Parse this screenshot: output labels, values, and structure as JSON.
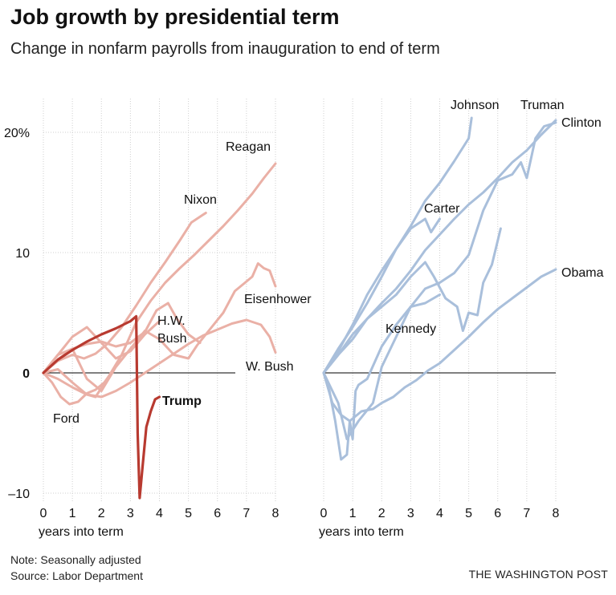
{
  "title": "Job growth by presidential term",
  "subtitle": "Change in nonfarm payrolls from inauguration to end of term",
  "note": "Note: Seasonally adjusted",
  "source": "Source: Labor Department",
  "credit": "THE WASHINGTON POST",
  "colors": {
    "red_light": "#eab0a6",
    "red_dark": "#b83a30",
    "blue": "#a9bfdb",
    "axis": "#000000",
    "grid": "#cfcfcf"
  },
  "chart_data": [
    {
      "type": "line",
      "xlabel": "years into term",
      "xlim": [
        0,
        8
      ],
      "ylim": [
        -10,
        20
      ],
      "x_ticks": [
        "0",
        "1",
        "2",
        "3",
        "4",
        "5",
        "6",
        "7",
        "8"
      ],
      "y_ticks": [
        {
          "value": 20,
          "label": "20%"
        },
        {
          "value": 10,
          "label": "10"
        },
        {
          "value": 0,
          "label": "0"
        },
        {
          "value": -10,
          "label": "–10"
        }
      ],
      "grid": true,
      "series": [
        {
          "name": "Reagan",
          "color": "#eab0a6",
          "points": [
            [
              0,
              0
            ],
            [
              0.5,
              0.3
            ],
            [
              1,
              -0.8
            ],
            [
              1.5,
              -1.8
            ],
            [
              1.8,
              -2.0
            ],
            [
              2.2,
              -0.5
            ],
            [
              2.7,
              1.5
            ],
            [
              3.2,
              4.2
            ],
            [
              3.7,
              6.0
            ],
            [
              4.2,
              7.5
            ],
            [
              4.7,
              8.7
            ],
            [
              5.2,
              9.8
            ],
            [
              5.7,
              11.0
            ],
            [
              6.2,
              12.2
            ],
            [
              6.7,
              13.5
            ],
            [
              7.2,
              14.9
            ],
            [
              7.6,
              16.2
            ],
            [
              8,
              17.4
            ]
          ]
        },
        {
          "name": "Nixon",
          "color": "#eab0a6",
          "points": [
            [
              0,
              0
            ],
            [
              0.5,
              1.0
            ],
            [
              1,
              1.5
            ],
            [
              1.4,
              1.2
            ],
            [
              1.8,
              1.6
            ],
            [
              2.2,
              2.4
            ],
            [
              2.7,
              3.8
            ],
            [
              3.2,
              5.6
            ],
            [
              3.7,
              7.5
            ],
            [
              4.2,
              9.2
            ],
            [
              4.7,
              11.0
            ],
            [
              5.1,
              12.5
            ],
            [
              5.6,
              13.3
            ]
          ]
        },
        {
          "name": "Eisenhower",
          "color": "#eab0a6",
          "points": [
            [
              0,
              0
            ],
            [
              0.5,
              1.5
            ],
            [
              1,
              2.0
            ],
            [
              1.5,
              -0.5
            ],
            [
              2,
              -1.5
            ],
            [
              2.5,
              0.5
            ],
            [
              3,
              2.0
            ],
            [
              3.5,
              3.5
            ],
            [
              4,
              2.8
            ],
            [
              4.5,
              1.5
            ],
            [
              5,
              1.2
            ],
            [
              5.3,
              2.3
            ],
            [
              5.7,
              3.5
            ],
            [
              6.2,
              5.0
            ],
            [
              6.6,
              6.8
            ],
            [
              6.9,
              7.4
            ],
            [
              7.2,
              8.0
            ],
            [
              7.4,
              9.1
            ],
            [
              7.6,
              8.7
            ],
            [
              7.8,
              8.5
            ],
            [
              8,
              7.2
            ]
          ]
        },
        {
          "name": "H.W. Bush",
          "color": "#eab0a6",
          "points": [
            [
              0,
              0
            ],
            [
              0.5,
              1.1
            ],
            [
              1,
              2.0
            ],
            [
              1.5,
              2.4
            ],
            [
              2,
              2.6
            ],
            [
              2.5,
              2.2
            ],
            [
              3,
              2.5
            ],
            [
              3.5,
              3.4
            ],
            [
              3.9,
              5.2
            ],
            [
              4.3,
              5.8
            ],
            [
              4.6,
              4.5
            ],
            [
              5,
              3.2
            ],
            [
              5.4,
              2.5
            ]
          ]
        },
        {
          "name": "Carter",
          "color": "#eab0a6",
          "points": [
            [
              0,
              0
            ],
            [
              0.5,
              1.5
            ],
            [
              1,
              3.0
            ],
            [
              1.5,
              3.8
            ],
            [
              2,
              2.5
            ],
            [
              2.5,
              1.2
            ],
            [
              3,
              1.8
            ],
            [
              3.5,
              3.2
            ],
            [
              4,
              4.3
            ]
          ]
        },
        {
          "name": "W. Bush",
          "color": "#eab0a6",
          "points": [
            [
              0,
              0
            ],
            [
              0.5,
              -0.5
            ],
            [
              1,
              -1.2
            ],
            [
              1.5,
              -1.8
            ],
            [
              2,
              -2.0
            ],
            [
              2.5,
              -1.5
            ],
            [
              3,
              -0.8
            ],
            [
              3.5,
              0.0
            ],
            [
              4,
              0.8
            ],
            [
              4.5,
              1.6
            ],
            [
              5,
              2.4
            ],
            [
              5.5,
              3.1
            ],
            [
              6,
              3.6
            ],
            [
              6.5,
              4.1
            ],
            [
              7,
              4.4
            ],
            [
              7.5,
              4.0
            ],
            [
              7.8,
              3.0
            ],
            [
              8,
              1.7
            ]
          ]
        },
        {
          "name": "Ford",
          "color": "#eab0a6",
          "points": [
            [
              0,
              0
            ],
            [
              0.3,
              -0.8
            ],
            [
              0.6,
              -2.0
            ],
            [
              0.9,
              -2.6
            ],
            [
              1.2,
              -2.4
            ],
            [
              1.5,
              -1.7
            ],
            [
              1.8,
              -1.4
            ],
            [
              2.1,
              -0.8
            ],
            [
              2.4,
              0.2
            ]
          ]
        },
        {
          "name": "Trump",
          "color": "#b83a30",
          "points": [
            [
              0,
              0
            ],
            [
              0.5,
              1.1
            ],
            [
              1,
              1.9
            ],
            [
              1.5,
              2.6
            ],
            [
              2,
              3.2
            ],
            [
              2.5,
              3.7
            ],
            [
              3,
              4.3
            ],
            [
              3.2,
              4.7
            ],
            [
              3.25,
              -5.0
            ],
            [
              3.32,
              -10.4
            ],
            [
              3.42,
              -7.8
            ],
            [
              3.55,
              -4.5
            ],
            [
              3.7,
              -3.2
            ],
            [
              3.85,
              -2.2
            ],
            [
              4.0,
              -2.0
            ]
          ]
        }
      ],
      "labels": [
        "Reagan",
        "Nixon",
        "Eisenhower",
        "H.W.",
        "Bush",
        "W. Bush",
        "Ford",
        "Trump"
      ]
    },
    {
      "type": "line",
      "xlabel": "years into term",
      "xlim": [
        0,
        8
      ],
      "ylim": [
        -10,
        20
      ],
      "x_ticks": [
        "0",
        "1",
        "2",
        "3",
        "4",
        "5",
        "6",
        "7",
        "8"
      ],
      "grid": true,
      "series": [
        {
          "name": "Johnson",
          "color": "#a9bfdb",
          "points": [
            [
              0,
              0
            ],
            [
              0.5,
              2.0
            ],
            [
              1,
              3.8
            ],
            [
              1.5,
              5.8
            ],
            [
              2,
              8.0
            ],
            [
              2.5,
              10.3
            ],
            [
              3,
              12.2
            ],
            [
              3.5,
              14.3
            ],
            [
              4,
              15.8
            ],
            [
              4.5,
              17.6
            ],
            [
              5,
              19.5
            ],
            [
              5.1,
              21.2
            ]
          ]
        },
        {
          "name": "Truman",
          "color": "#a9bfdb",
          "points": [
            [
              0,
              0
            ],
            [
              0.5,
              -2.5
            ],
            [
              0.8,
              -5.5
            ],
            [
              1.2,
              -4.0
            ],
            [
              1.7,
              -2.5
            ],
            [
              2,
              0.5
            ],
            [
              2.5,
              3.0
            ],
            [
              3,
              5.5
            ],
            [
              3.5,
              7.0
            ],
            [
              4,
              7.5
            ],
            [
              4.5,
              8.3
            ],
            [
              5,
              9.8
            ],
            [
              5.5,
              13.5
            ],
            [
              6,
              16.0
            ],
            [
              6.5,
              16.5
            ],
            [
              6.8,
              17.5
            ],
            [
              7,
              16.2
            ],
            [
              7.3,
              19.5
            ],
            [
              7.6,
              20.5
            ],
            [
              8,
              20.8
            ]
          ]
        },
        {
          "name": "Clinton",
          "color": "#a9bfdb",
          "points": [
            [
              0,
              0
            ],
            [
              0.5,
              1.5
            ],
            [
              1,
              3.2
            ],
            [
              1.5,
              4.5
            ],
            [
              2,
              5.8
            ],
            [
              2.5,
              7.0
            ],
            [
              3,
              8.5
            ],
            [
              3.5,
              10.2
            ],
            [
              4,
              11.5
            ],
            [
              4.5,
              12.8
            ],
            [
              5,
              14.0
            ],
            [
              5.5,
              15.0
            ],
            [
              6,
              16.2
            ],
            [
              6.5,
              17.5
            ],
            [
              7,
              18.5
            ],
            [
              7.5,
              19.8
            ],
            [
              8,
              21.0
            ]
          ]
        },
        {
          "name": "Carter",
          "color": "#a9bfdb",
          "points": [
            [
              0,
              0
            ],
            [
              0.5,
              1.8
            ],
            [
              1,
              4.0
            ],
            [
              1.5,
              6.5
            ],
            [
              2,
              8.5
            ],
            [
              2.5,
              10.3
            ],
            [
              3,
              12.0
            ],
            [
              3.5,
              12.8
            ],
            [
              3.7,
              11.7
            ],
            [
              4,
              12.8
            ]
          ]
        },
        {
          "name": "Kennedy",
          "color": "#a9bfdb",
          "points": [
            [
              0,
              0
            ],
            [
              0.5,
              1.5
            ],
            [
              1,
              2.8
            ],
            [
              1.5,
              4.5
            ],
            [
              2,
              5.5
            ],
            [
              2.5,
              6.5
            ],
            [
              3,
              8.0
            ],
            [
              3.5,
              9.2
            ],
            [
              3.8,
              8.0
            ],
            [
              4.2,
              6.2
            ],
            [
              4.6,
              5.5
            ],
            [
              4.8,
              3.5
            ],
            [
              5.0,
              5.0
            ],
            [
              5.3,
              4.8
            ],
            [
              5.5,
              7.5
            ],
            [
              5.8,
              9.0
            ],
            [
              6.1,
              12.0
            ]
          ]
        },
        {
          "name": "Nixon",
          "color": "#a9bfdb",
          "points": [
            [
              0,
              0
            ],
            [
              0.3,
              -2.5
            ],
            [
              0.6,
              -3.5
            ],
            [
              0.9,
              -4.0
            ],
            [
              1.3,
              -3.2
            ],
            [
              1.7,
              -3.0
            ],
            [
              2,
              -2.5
            ],
            [
              2.4,
              -2.0
            ],
            [
              2.8,
              -1.2
            ],
            [
              3.2,
              -0.6
            ],
            [
              3.6,
              0.2
            ],
            [
              4,
              0.8
            ],
            [
              4.5,
              1.9
            ],
            [
              5,
              3.0
            ],
            [
              5.5,
              4.2
            ],
            [
              6,
              5.3
            ],
            [
              6.5,
              6.2
            ],
            [
              7,
              7.1
            ],
            [
              7.5,
              8.0
            ],
            [
              8,
              8.6
            ]
          ]
        },
        {
          "name": "Obama",
          "color": "#a9bfdb",
          "points": [
            [
              0,
              0
            ],
            [
              0.2,
              -1.5
            ],
            [
              0.4,
              -4.0
            ],
            [
              0.6,
              -7.2
            ],
            [
              0.8,
              -6.8
            ],
            [
              0.9,
              -4.0
            ],
            [
              1.0,
              -5.5
            ],
            [
              1.1,
              -1.5
            ],
            [
              1.2,
              -1.0
            ],
            [
              1.5,
              -0.5
            ],
            [
              2,
              2.2
            ],
            [
              2.5,
              4.0
            ],
            [
              3,
              5.5
            ],
            [
              3.5,
              5.8
            ],
            [
              4,
              6.5
            ]
          ]
        }
      ],
      "labels": [
        "Johnson",
        "Truman",
        "Clinton",
        "Carter",
        "Kennedy",
        "Obama"
      ]
    }
  ]
}
